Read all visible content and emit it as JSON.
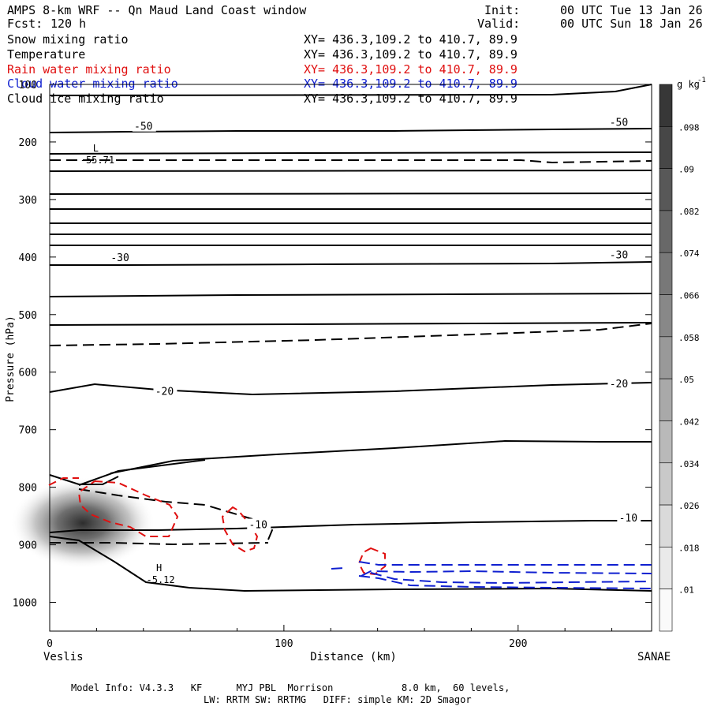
{
  "header": {
    "title_left": "AMPS 8-km WRF -- Qn Maud Land Coast window",
    "forecast_label": "Fcst:",
    "forecast_value": "120 h",
    "init_label": "Init:",
    "init_value": "00 UTC Tue 13 Jan 26",
    "valid_label": "Valid:",
    "valid_value": "00 UTC Sun 18 Jan 26"
  },
  "fields": [
    {
      "name": "Snow mixing ratio",
      "xy": "XY= 436.3,109.2 to 410.7, 89.9",
      "color": "#000000"
    },
    {
      "name": "Temperature",
      "xy": "XY= 436.3,109.2 to 410.7, 89.9",
      "color": "#000000"
    },
    {
      "name": "Rain water mixing ratio",
      "xy": "XY= 436.3,109.2 to 410.7, 89.9",
      "color": "#e01010"
    },
    {
      "name": "Cloud water mixing ratio",
      "xy": "XY= 436.3,109.2 to 410.7, 89.9",
      "color": "#1020d0"
    },
    {
      "name": "Cloud ice mixing ratio",
      "xy": "XY= 436.3,109.2 to 410.7, 89.9",
      "color": "#000000"
    }
  ],
  "footer": {
    "line1": "Model Info: V4.3.3   KF      MYJ PBL  Morrison            8.0 km,  60 levels,",
    "line2": "LW: RRTM SW: RRTMG   DIFF: simple KM: 2D Smagor"
  },
  "chart_data": {
    "type": "contour cross-section",
    "xlabel": "Distance (km)",
    "ylabel": "Pressure (hPa)",
    "xlim": [
      0,
      257
    ],
    "ylim": [
      1050,
      100
    ],
    "x_ticks": [
      0,
      100,
      200
    ],
    "y_ticks": [
      100,
      200,
      300,
      400,
      500,
      600,
      700,
      800,
      900,
      1000
    ],
    "x_left_label": "Veslis",
    "x_right_label": "SANAE",
    "colorbar": {
      "units": "g kg",
      "units_exp": "-1",
      "tick_labels": [
        ".098",
        ".09",
        ".082",
        ".074",
        ".066",
        ".058",
        ".05",
        ".042",
        ".034",
        ".026",
        ".018",
        ".01"
      ]
    },
    "temperature_contour_labels": [
      {
        "text": "-50",
        "x": 40,
        "p": 175
      },
      {
        "text": "-50",
        "x": 243,
        "p": 168
      },
      {
        "text": "-30",
        "x": 30,
        "p": 403
      },
      {
        "text": "-30",
        "x": 243,
        "p": 398
      },
      {
        "text": "-20",
        "x": 49,
        "p": 635
      },
      {
        "text": "-20",
        "x": 243,
        "p": 622
      },
      {
        "text": "-10",
        "x": 89,
        "p": 867
      },
      {
        "text": "-10",
        "x": 247,
        "p": 855
      }
    ],
    "extrema": [
      {
        "type": "L",
        "value": "-55.71",
        "x": 19,
        "p": 233
      },
      {
        "type": "H",
        "value": "-5.12",
        "x": 46,
        "p": 962
      }
    ],
    "snow_max_location": {
      "x": 12,
      "p": 862,
      "value": 0.1
    }
  }
}
